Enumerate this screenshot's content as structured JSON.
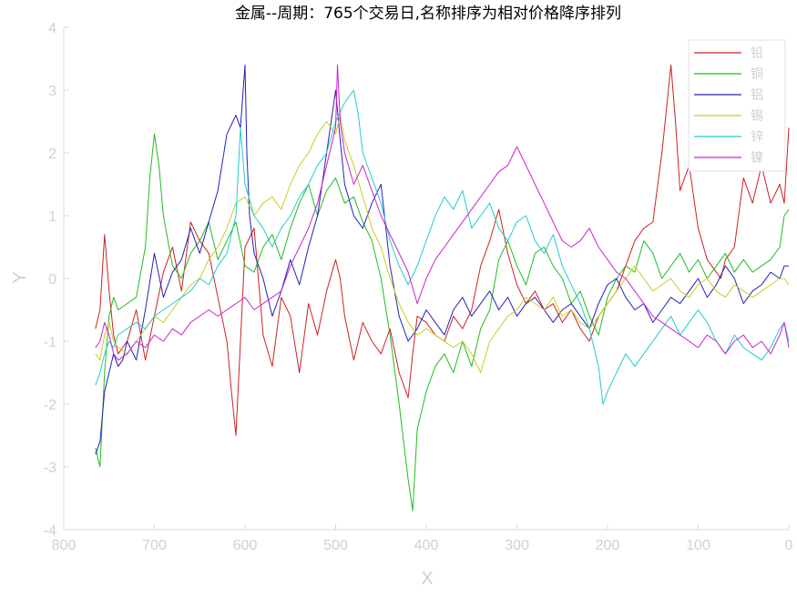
{
  "chart_data": {
    "type": "line",
    "title": "金属--周期：765个交易日,名称排序为相对价格降序排列",
    "xlabel": "X",
    "ylabel": "Y",
    "xlim": [
      800,
      0
    ],
    "ylim": [
      -4,
      4
    ],
    "x_reversed": true,
    "x_ticks": [
      800,
      700,
      600,
      500,
      400,
      300,
      200,
      100,
      0
    ],
    "y_ticks": [
      4,
      3,
      2,
      1,
      0,
      -1,
      -2,
      -3,
      -4
    ],
    "grid": false,
    "legend_position": "top-right",
    "series": [
      {
        "name": "铅",
        "color": "#cc2222",
        "x": [
          765,
          760,
          755,
          750,
          745,
          740,
          730,
          720,
          710,
          700,
          690,
          680,
          670,
          660,
          650,
          640,
          630,
          620,
          615,
          610,
          605,
          600,
          590,
          580,
          570,
          560,
          550,
          540,
          530,
          520,
          510,
          500,
          495,
          490,
          480,
          470,
          460,
          450,
          440,
          430,
          420,
          415,
          410,
          400,
          390,
          380,
          370,
          360,
          350,
          340,
          330,
          320,
          310,
          300,
          290,
          280,
          270,
          260,
          250,
          240,
          230,
          220,
          210,
          200,
          190,
          180,
          170,
          160,
          150,
          140,
          135,
          130,
          125,
          120,
          110,
          100,
          90,
          80,
          75,
          70,
          60,
          50,
          40,
          30,
          20,
          10,
          5,
          0
        ],
        "y": [
          -0.8,
          -0.5,
          0.7,
          -0.2,
          -0.9,
          -1.2,
          -1.0,
          -0.5,
          -1.3,
          -0.6,
          0.1,
          0.5,
          -0.2,
          0.9,
          0.6,
          0.4,
          -0.3,
          -1.0,
          -1.8,
          -2.5,
          -1.0,
          0.5,
          0.8,
          -0.9,
          -1.4,
          -0.3,
          -0.6,
          -1.5,
          -0.4,
          -0.9,
          -0.2,
          0.3,
          0.0,
          -0.6,
          -1.3,
          -0.7,
          -1.0,
          -1.2,
          -0.8,
          -1.5,
          -1.9,
          -1.2,
          -0.6,
          -0.7,
          -0.9,
          -1.0,
          -0.6,
          -0.8,
          -0.5,
          0.2,
          0.6,
          1.1,
          0.4,
          -0.1,
          -0.4,
          -0.2,
          -0.5,
          -0.4,
          -0.7,
          -0.5,
          -0.8,
          -1.0,
          -0.6,
          -0.4,
          -0.2,
          0.2,
          0.6,
          0.8,
          0.9,
          2.0,
          2.7,
          3.4,
          2.5,
          1.4,
          1.8,
          0.8,
          0.3,
          0.1,
          0.0,
          0.3,
          0.5,
          1.6,
          1.2,
          1.8,
          1.2,
          1.5,
          1.2,
          2.4
        ]
      },
      {
        "name": "铜",
        "color": "#22bb22",
        "x": [
          765,
          760,
          755,
          750,
          745,
          740,
          730,
          720,
          710,
          705,
          700,
          695,
          690,
          680,
          670,
          660,
          650,
          640,
          630,
          620,
          610,
          600,
          590,
          580,
          570,
          560,
          550,
          540,
          530,
          520,
          510,
          500,
          490,
          480,
          470,
          460,
          450,
          440,
          430,
          420,
          415,
          410,
          400,
          390,
          380,
          370,
          360,
          350,
          340,
          330,
          320,
          310,
          300,
          290,
          280,
          270,
          260,
          250,
          240,
          230,
          220,
          210,
          200,
          190,
          180,
          170,
          160,
          150,
          140,
          130,
          120,
          110,
          100,
          90,
          80,
          70,
          60,
          50,
          40,
          30,
          20,
          10,
          5,
          0
        ],
        "y": [
          -2.7,
          -3.0,
          -1.5,
          -0.6,
          -0.3,
          -0.5,
          -0.4,
          -0.3,
          0.5,
          1.6,
          2.3,
          1.8,
          1.0,
          0.2,
          0.0,
          0.4,
          0.6,
          0.9,
          0.3,
          0.6,
          0.9,
          0.2,
          0.1,
          0.5,
          0.7,
          0.3,
          0.8,
          1.2,
          1.5,
          1.0,
          1.4,
          1.6,
          1.2,
          1.3,
          0.9,
          0.6,
          0.0,
          -0.9,
          -2.0,
          -3.2,
          -3.7,
          -2.4,
          -1.8,
          -1.4,
          -1.2,
          -1.5,
          -1.0,
          -1.4,
          -0.8,
          -0.5,
          0.3,
          0.6,
          0.2,
          -0.1,
          0.4,
          0.5,
          0.2,
          0.0,
          -0.4,
          -0.2,
          -0.6,
          -0.9,
          -0.3,
          0.0,
          0.2,
          0.1,
          0.6,
          0.4,
          0.0,
          0.2,
          0.4,
          0.1,
          0.3,
          0.0,
          0.2,
          0.4,
          0.1,
          0.3,
          0.1,
          0.2,
          0.3,
          0.5,
          1.0,
          1.1
        ]
      },
      {
        "name": "铝",
        "color": "#2222bb",
        "x": [
          765,
          760,
          755,
          750,
          745,
          740,
          735,
          730,
          720,
          710,
          700,
          690,
          680,
          670,
          660,
          650,
          640,
          630,
          620,
          610,
          605,
          600,
          598,
          595,
          590,
          580,
          570,
          560,
          550,
          540,
          530,
          520,
          510,
          500,
          495,
          490,
          480,
          470,
          460,
          450,
          440,
          430,
          420,
          410,
          400,
          390,
          380,
          370,
          360,
          350,
          340,
          330,
          320,
          310,
          300,
          290,
          280,
          270,
          260,
          250,
          240,
          230,
          220,
          210,
          200,
          190,
          180,
          170,
          160,
          150,
          140,
          130,
          120,
          110,
          100,
          90,
          80,
          70,
          60,
          50,
          40,
          30,
          20,
          10,
          5,
          0
        ],
        "y": [
          -2.8,
          -2.6,
          -1.8,
          -1.5,
          -1.2,
          -1.4,
          -1.3,
          -1.0,
          -1.3,
          -0.5,
          0.4,
          -0.3,
          0.1,
          0.3,
          0.8,
          0.4,
          0.9,
          1.4,
          2.3,
          2.6,
          2.4,
          3.4,
          2.0,
          1.0,
          0.4,
          0.0,
          -0.6,
          -0.2,
          0.3,
          -0.1,
          0.5,
          1.0,
          2.0,
          3.0,
          2.2,
          1.5,
          1.0,
          0.8,
          1.2,
          1.5,
          0.2,
          -0.6,
          -1.0,
          -0.8,
          -0.5,
          -0.7,
          -0.9,
          -0.5,
          -0.3,
          -0.6,
          -0.4,
          -0.2,
          -0.5,
          -0.3,
          -0.6,
          -0.4,
          -0.3,
          -0.5,
          -0.7,
          -0.5,
          -0.4,
          -0.6,
          -0.8,
          -0.4,
          -0.1,
          0.0,
          -0.3,
          -0.5,
          -0.4,
          -0.7,
          -0.5,
          -0.3,
          -0.4,
          -0.2,
          0.0,
          -0.3,
          -0.1,
          0.2,
          0.0,
          -0.4,
          -0.2,
          -0.1,
          0.1,
          0.0,
          0.2,
          0.2
        ]
      },
      {
        "name": "锡",
        "color": "#cccc22",
        "x": [
          765,
          760,
          755,
          750,
          745,
          740,
          730,
          720,
          710,
          700,
          690,
          680,
          670,
          660,
          650,
          640,
          630,
          620,
          610,
          600,
          590,
          580,
          570,
          560,
          550,
          540,
          530,
          520,
          510,
          500,
          495,
          490,
          480,
          470,
          460,
          450,
          440,
          430,
          420,
          410,
          400,
          390,
          380,
          370,
          360,
          350,
          340,
          330,
          320,
          310,
          300,
          290,
          280,
          270,
          260,
          250,
          240,
          230,
          220,
          210,
          200,
          190,
          180,
          170,
          160,
          150,
          140,
          130,
          120,
          110,
          100,
          90,
          80,
          70,
          60,
          50,
          40,
          30,
          20,
          10,
          5,
          0
        ],
        "y": [
          -1.2,
          -1.3,
          -0.9,
          -0.7,
          -1.0,
          -1.1,
          -1.2,
          -1.0,
          -0.8,
          -0.6,
          -0.7,
          -0.5,
          -0.3,
          -0.1,
          0.0,
          0.3,
          0.5,
          0.8,
          1.2,
          1.3,
          1.0,
          1.2,
          1.3,
          1.1,
          1.5,
          1.8,
          2.0,
          2.3,
          2.5,
          2.3,
          2.6,
          2.2,
          1.8,
          1.3,
          0.8,
          0.5,
          0.0,
          -0.4,
          -0.7,
          -0.9,
          -0.8,
          -0.9,
          -1.0,
          -1.1,
          -1.0,
          -1.2,
          -1.5,
          -1.0,
          -0.8,
          -0.6,
          -0.5,
          -0.3,
          -0.4,
          -0.5,
          -0.3,
          -0.6,
          -0.5,
          -0.7,
          -0.8,
          -0.6,
          -0.4,
          -0.2,
          0.0,
          0.2,
          0.0,
          -0.2,
          -0.1,
          0.0,
          -0.2,
          -0.3,
          -0.1,
          0.0,
          -0.2,
          -0.3,
          -0.1,
          -0.2,
          -0.3,
          -0.2,
          -0.1,
          0.0,
          0.0,
          -0.1
        ]
      },
      {
        "name": "锌",
        "color": "#22cccc",
        "x": [
          765,
          760,
          755,
          750,
          745,
          740,
          730,
          720,
          710,
          700,
          690,
          680,
          670,
          660,
          650,
          640,
          630,
          620,
          610,
          605,
          600,
          590,
          580,
          570,
          560,
          550,
          540,
          530,
          520,
          510,
          500,
          490,
          480,
          475,
          470,
          460,
          450,
          440,
          430,
          420,
          410,
          400,
          390,
          380,
          370,
          360,
          350,
          340,
          330,
          320,
          310,
          300,
          290,
          280,
          270,
          260,
          250,
          240,
          230,
          220,
          210,
          205,
          200,
          190,
          180,
          170,
          160,
          150,
          140,
          130,
          120,
          110,
          100,
          90,
          80,
          70,
          60,
          50,
          40,
          30,
          20,
          10,
          5,
          0
        ],
        "y": [
          -1.7,
          -1.5,
          -1.2,
          -1.0,
          -1.1,
          -0.9,
          -0.8,
          -0.7,
          -0.8,
          -0.6,
          -0.5,
          -0.4,
          -0.3,
          -0.2,
          0.0,
          -0.1,
          0.2,
          0.4,
          1.0,
          2.4,
          1.5,
          1.0,
          0.8,
          0.5,
          0.8,
          1.0,
          1.3,
          1.5,
          1.8,
          2.0,
          2.5,
          2.8,
          3.0,
          2.6,
          2.0,
          1.6,
          1.2,
          0.6,
          0.2,
          -0.1,
          0.2,
          0.6,
          1.0,
          1.3,
          1.1,
          1.4,
          0.8,
          1.0,
          1.2,
          0.8,
          0.6,
          0.9,
          1.0,
          0.6,
          0.4,
          0.7,
          0.2,
          -0.1,
          -0.4,
          -0.8,
          -1.4,
          -2.0,
          -1.8,
          -1.5,
          -1.2,
          -1.4,
          -1.2,
          -1.0,
          -0.8,
          -0.6,
          -0.9,
          -0.7,
          -0.5,
          -0.7,
          -1.0,
          -1.2,
          -0.9,
          -1.1,
          -1.2,
          -1.3,
          -1.1,
          -0.8,
          -0.7,
          -1.0
        ]
      },
      {
        "name": "镍",
        "color": "#cc22cc",
        "x": [
          765,
          760,
          755,
          750,
          745,
          740,
          730,
          720,
          710,
          700,
          690,
          680,
          670,
          660,
          650,
          640,
          630,
          620,
          610,
          600,
          590,
          580,
          570,
          560,
          550,
          540,
          530,
          520,
          510,
          500,
          498,
          495,
          490,
          480,
          470,
          460,
          450,
          440,
          430,
          420,
          410,
          400,
          390,
          380,
          370,
          360,
          350,
          340,
          330,
          320,
          310,
          300,
          290,
          280,
          270,
          260,
          250,
          240,
          230,
          220,
          210,
          200,
          190,
          180,
          170,
          160,
          150,
          140,
          130,
          120,
          110,
          100,
          90,
          80,
          70,
          60,
          50,
          40,
          30,
          20,
          10,
          5,
          0
        ],
        "y": [
          -1.1,
          -1.0,
          -0.7,
          -0.9,
          -1.2,
          -1.3,
          -1.2,
          -1.0,
          -1.1,
          -0.9,
          -1.0,
          -0.8,
          -0.9,
          -0.7,
          -0.6,
          -0.5,
          -0.6,
          -0.5,
          -0.4,
          -0.3,
          -0.5,
          -0.4,
          -0.3,
          -0.2,
          0.2,
          0.5,
          0.8,
          1.2,
          1.8,
          2.4,
          3.4,
          2.5,
          2.0,
          1.5,
          1.8,
          1.4,
          1.0,
          0.7,
          0.4,
          0.1,
          -0.4,
          0.0,
          0.3,
          0.5,
          0.7,
          0.9,
          1.1,
          1.3,
          1.5,
          1.7,
          1.8,
          2.1,
          1.8,
          1.5,
          1.2,
          0.9,
          0.6,
          0.5,
          0.6,
          0.8,
          0.5,
          0.3,
          0.1,
          0.0,
          -0.2,
          -0.4,
          -0.6,
          -0.7,
          -0.8,
          -0.9,
          -1.0,
          -1.1,
          -0.9,
          -1.0,
          -1.2,
          -1.0,
          -0.9,
          -1.1,
          -1.0,
          -1.2,
          -0.9,
          -0.7,
          -1.1
        ]
      }
    ]
  }
}
